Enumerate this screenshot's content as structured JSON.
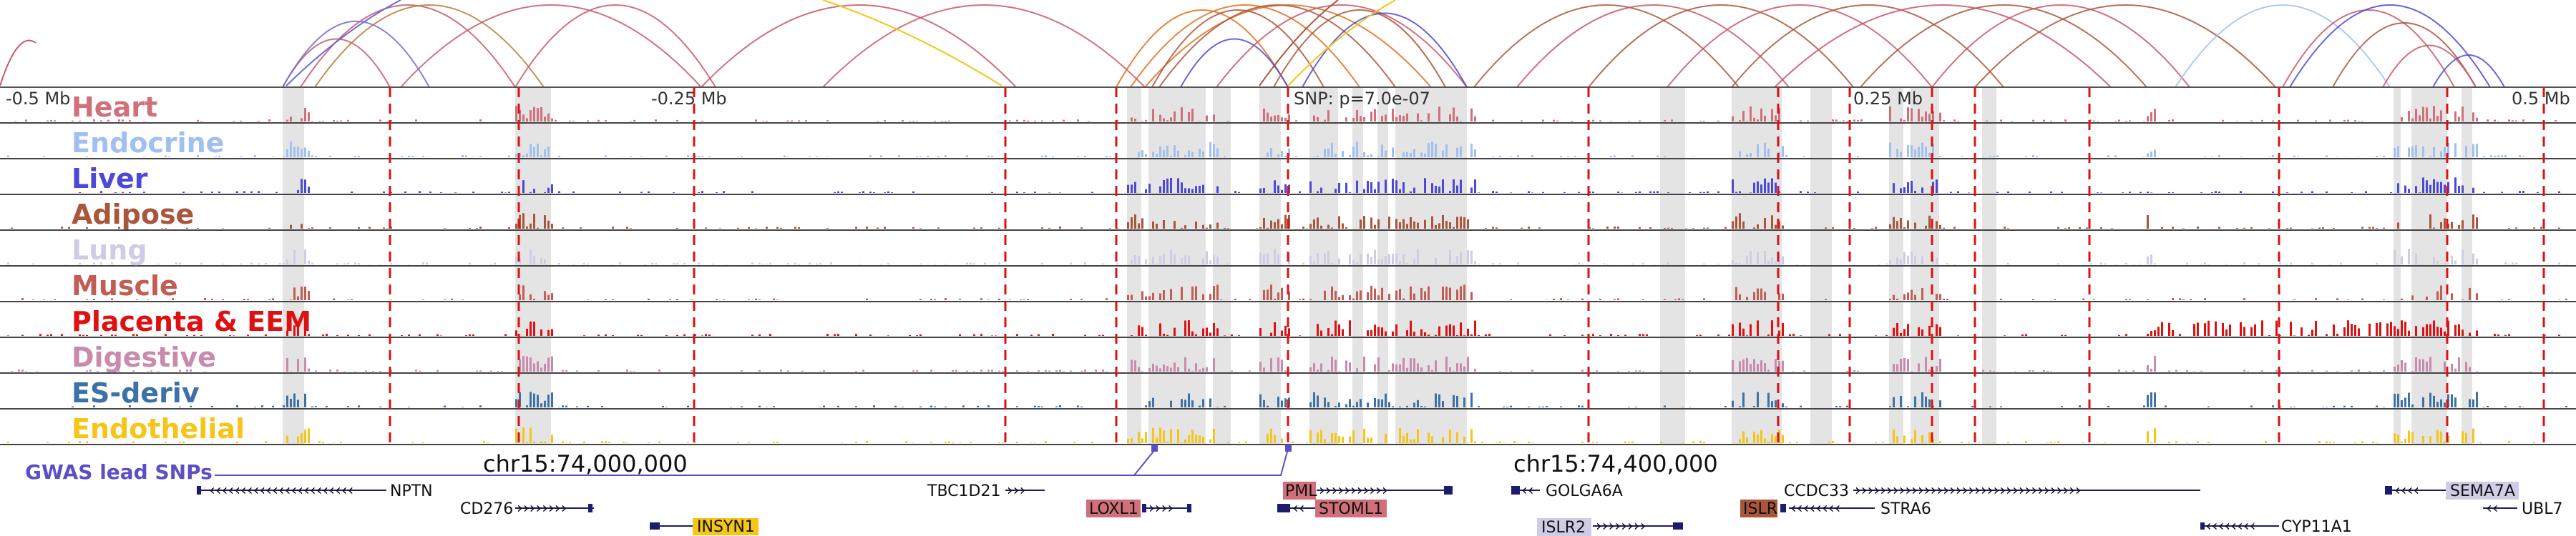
{
  "axis": {
    "left": "-0.5 Mb",
    "left_mid": "-0.25 Mb",
    "snp": "SNP: p=7.0e-07",
    "right_mid": "0.25 Mb",
    "right": "0.5 Mb"
  },
  "tracks": [
    {
      "name": "Heart",
      "color": "#d1707a"
    },
    {
      "name": "Endocrine",
      "color": "#9fc0f0"
    },
    {
      "name": "Liver",
      "color": "#4b49d6"
    },
    {
      "name": "Adipose",
      "color": "#a9563a"
    },
    {
      "name": "Lung",
      "color": "#cfcce6"
    },
    {
      "name": "Muscle",
      "color": "#c25d55"
    },
    {
      "name": "Placenta & EEM",
      "color": "#e01010"
    },
    {
      "name": "Digestive",
      "color": "#c98aae"
    },
    {
      "name": "ES-deriv",
      "color": "#3d72a8"
    },
    {
      "name": "Endothelial",
      "color": "#f5c518"
    }
  ],
  "coords": {
    "left": "chr15:74,000,000",
    "right": "chr15:74,400,000"
  },
  "gwas_label": "GWAS lead SNPs",
  "genes": [
    {
      "name": "NPTN",
      "highlight": ""
    },
    {
      "name": "CD276",
      "highlight": ""
    },
    {
      "name": "INSYN1",
      "highlight": "#f5c518"
    },
    {
      "name": "TBC1D21",
      "highlight": ""
    },
    {
      "name": "LOXL1",
      "highlight": "#d1707a"
    },
    {
      "name": "PML",
      "highlight": "#d1707a"
    },
    {
      "name": "STOML1",
      "highlight": "#d1707a"
    },
    {
      "name": "GOLGA6A",
      "highlight": ""
    },
    {
      "name": "ISLR2",
      "highlight": "#cfcce6"
    },
    {
      "name": "CCDC33",
      "highlight": ""
    },
    {
      "name": "ISLR",
      "highlight": "#a9563a"
    },
    {
      "name": "STRA6",
      "highlight": ""
    },
    {
      "name": "CYP11A1",
      "highlight": ""
    },
    {
      "name": "SEMA7A",
      "highlight": "#cfcce6"
    },
    {
      "name": "UBL7",
      "highlight": ""
    }
  ],
  "colors": {
    "grid_line": "#dd1111",
    "shade": "#e4e4e4",
    "gwas_line": "#5a4fc4",
    "gene_body": "#1c1c6e"
  }
}
